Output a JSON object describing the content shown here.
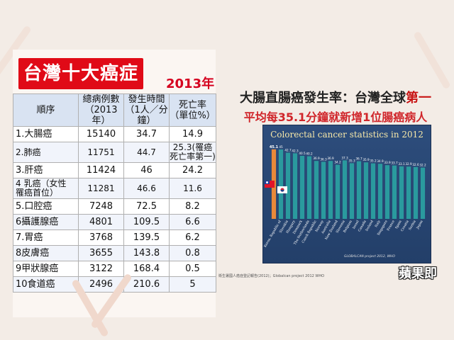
{
  "left": {
    "title": "台灣十大癌症",
    "year": "2013年",
    "headers": [
      "順序",
      "總病例數\n（2013年）",
      "發生時間\n（1人／分鐘）",
      "死亡率\n（單位%）"
    ],
    "rows": [
      {
        "name": "1.大腸癌",
        "cases": "15140",
        "time": "34.7",
        "death": "14.9"
      },
      {
        "name": "2.肺癌",
        "cases": "11751",
        "time": "44.7",
        "death": "25.3(罹癌\n死亡率第一)"
      },
      {
        "name": "3.肝癌",
        "cases": "11424",
        "time": "46",
        "death": "24.2"
      },
      {
        "name": "4 乳癌（女性\n罹癌首位）",
        "cases": "11281",
        "time": "46.6",
        "death": "11.6"
      },
      {
        "name": "5.口腔癌",
        "cases": "7248",
        "time": "72.5",
        "death": "8.2"
      },
      {
        "name": "6攝護腺癌",
        "cases": "4801",
        "time": "109.5",
        "death": "6.6"
      },
      {
        "name": "7.胃癌",
        "cases": "3768",
        "time": "139.5",
        "death": "6.2"
      },
      {
        "name": "8皮膚癌",
        "cases": "3655",
        "time": "143.8",
        "death": "0.8"
      },
      {
        "name": "9甲狀腺癌",
        "cases": "3122",
        "time": "168.4",
        "death": "0.5"
      },
      {
        "name": "10食道癌",
        "cases": "2496",
        "time": "210.6",
        "death": "5"
      }
    ]
  },
  "right": {
    "headline_a": "大腸直腸癌",
    "headline_b": "發生率：台灣全球",
    "headline_c": "第一",
    "subheadline": "平均每35.1分鐘就新增1位腸癌病人",
    "source": "衛生署國人癌症登記報告(2012)；Globalcan project 2012 WHO",
    "watermark": "蘋果即"
  },
  "chart_data": {
    "type": "bar",
    "title": "Colorectal cancer statistics in 2012",
    "annotation": "GLOBALCAN project 2012, WHO",
    "categories": [
      "Taiwan",
      "Korea, Republic of",
      "Slovakia",
      "Hungary",
      "Denmark",
      "The Netherlands",
      "Czech Republic",
      "Norway",
      "Australia",
      "New Zealand",
      "Slovenia",
      "Belgium",
      "Israel",
      "Canada",
      "Ireland",
      "Italy",
      "Singapore",
      "France",
      "Spain",
      "Croatia",
      "Serbia",
      "Japan"
    ],
    "tick_labels": [
      "",
      "Korea, Republic of",
      "Slovakia",
      "Hungary",
      "Denmark",
      "The Netherlands",
      "Czech Republic",
      "Norway",
      "Australia",
      "New Zealand",
      "Slovenia",
      "Belgium",
      "Israel",
      "Canada",
      "Ireland",
      "Italy",
      "Singapore",
      "France",
      "Spain",
      "Croatia",
      "Serbia",
      "Japan"
    ],
    "values": [
      45.1,
      45,
      42.7,
      42.3,
      40.5,
      40.2,
      36.9,
      36.3,
      36.9,
      34.2,
      37.3,
      35.3,
      36.7,
      35.9,
      35.2,
      34.9,
      33.9,
      33.7,
      33.1,
      32.9,
      32.6,
      32.2
    ],
    "value_labels": [
      "45.1",
      "45",
      "42.7",
      "42.3",
      "40.5",
      "40.2",
      "36.9",
      "36.3",
      "36.9",
      "34.2",
      "37.3",
      "35.3",
      "36.7",
      "35.9",
      "35.2",
      "34.9",
      "33.9",
      "33.7",
      "33.1",
      "32.9",
      "32.6",
      "32.2"
    ],
    "ylim": [
      0,
      50
    ],
    "colors": {
      "highlight": "#e8893a",
      "bar": "#2a9a9e",
      "korea_highlight": "#e8893a"
    }
  }
}
